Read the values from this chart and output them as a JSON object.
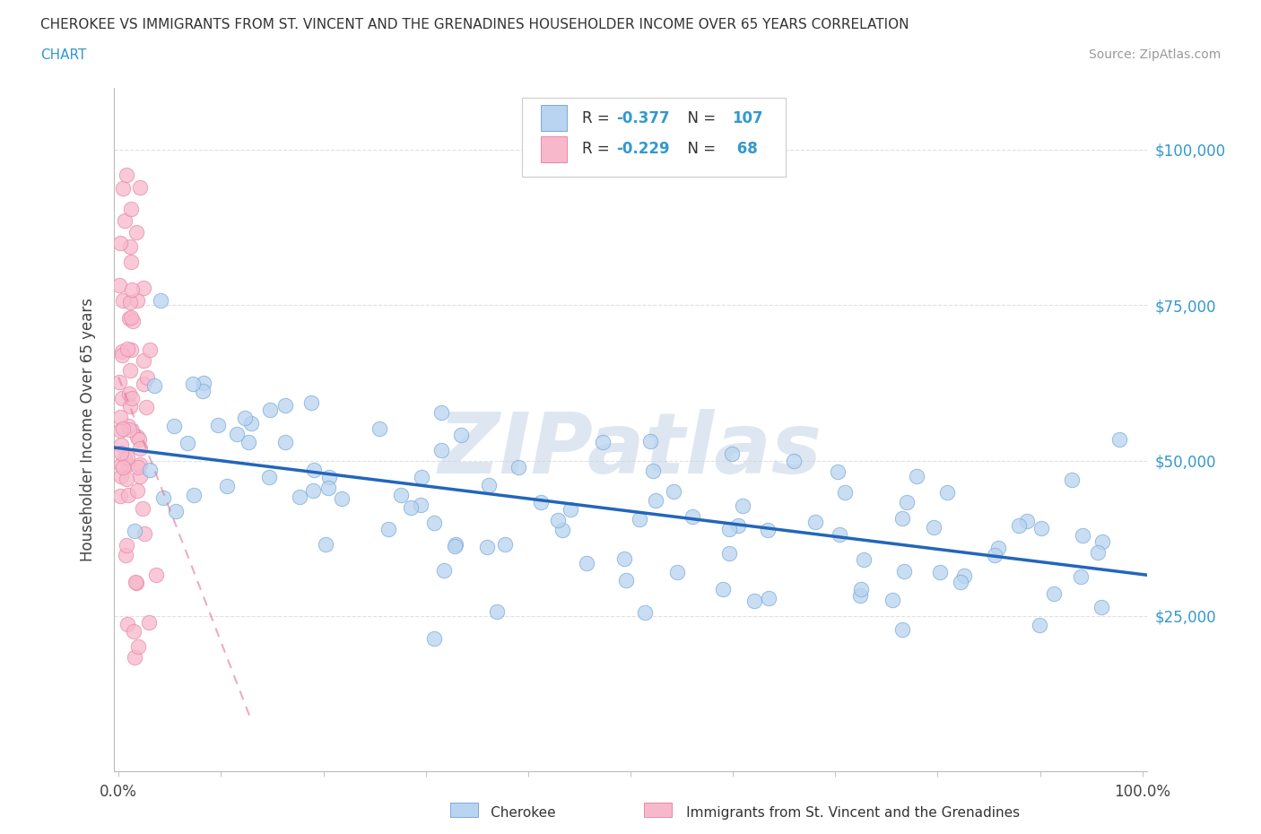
{
  "title_line1": "CHEROKEE VS IMMIGRANTS FROM ST. VINCENT AND THE GRENADINES HOUSEHOLDER INCOME OVER 65 YEARS CORRELATION",
  "title_line2": "CHART",
  "source_text": "Source: ZipAtlas.com",
  "ylabel": "Householder Income Over 65 years",
  "color_cherokee_fill": "#b8d4f0",
  "color_cherokee_edge": "#7aaad8",
  "color_svg_fill": "#f8b8cc",
  "color_svg_edge": "#e888a8",
  "color_cherokee_line": "#2266bb",
  "color_svg_line": "#dd7799",
  "watermark_color": "#c8d8e8",
  "background_color": "#ffffff",
  "grid_color": "#e0e0e0",
  "ytick_color": "#3399cc",
  "title_color": "#333333",
  "legend_text_color": "#2255aa",
  "legend_value_color": "#3399cc",
  "r1": "-0.377",
  "n1": "107",
  "r2": "-0.229",
  "n2": " 68",
  "seed": 42
}
